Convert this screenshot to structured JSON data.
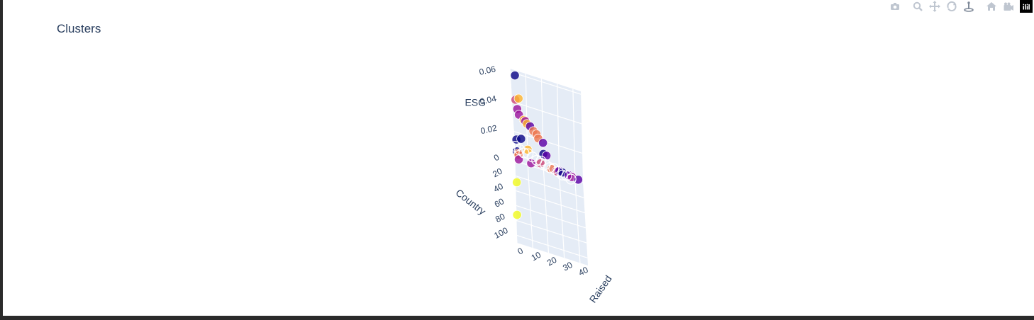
{
  "chart_data": {
    "type": "scatter3d",
    "title": "Clusters",
    "axes": {
      "x": {
        "label": "Country",
        "ticks": [
          "0",
          "20",
          "40",
          "60",
          "80",
          "100"
        ],
        "range": [
          0,
          110
        ]
      },
      "y": {
        "label": "Raised",
        "ticks": [
          "0",
          "10",
          "20",
          "30",
          "40"
        ],
        "range": [
          0,
          45
        ]
      },
      "z": {
        "label": "ESG",
        "ticks": [
          "0.02",
          "0.04",
          "0.06"
        ],
        "range": [
          0,
          0.062
        ]
      }
    },
    "grid": true,
    "colorscale": [
      "#0d0887",
      "#5c01a6",
      "#9c179e",
      "#cc4778",
      "#ed7953",
      "#fdb42f",
      "#f0f921"
    ],
    "points": [
      {
        "x": 5,
        "y": 3,
        "z": 0.061,
        "c": 0
      },
      {
        "x": 5,
        "y": 5,
        "z": 0.046,
        "c": 5
      },
      {
        "x": 4,
        "y": 3,
        "z": 0.044,
        "c": 3
      },
      {
        "x": 4,
        "y": 4,
        "z": 0.038,
        "c": 2
      },
      {
        "x": 3,
        "y": 5,
        "z": 0.034,
        "c": 2
      },
      {
        "x": 4,
        "y": 8,
        "z": 0.032,
        "c": 5
      },
      {
        "x": 3,
        "y": 9,
        "z": 0.031,
        "c": 2
      },
      {
        "x": 4,
        "y": 10,
        "z": 0.03,
        "c": 5
      },
      {
        "x": 2,
        "y": 12,
        "z": 0.028,
        "c": 1
      },
      {
        "x": 3,
        "y": 14,
        "z": 0.026,
        "c": 4
      },
      {
        "x": 2,
        "y": 16,
        "z": 0.024,
        "c": 4
      },
      {
        "x": 3,
        "y": 17,
        "z": 0.022,
        "c": 4
      },
      {
        "x": 3,
        "y": 20,
        "z": 0.02,
        "c": 1
      },
      {
        "x": 20,
        "y": 4,
        "z": 0.012,
        "c": 2
      },
      {
        "x": 10,
        "y": 3,
        "z": 0.012,
        "c": 0
      },
      {
        "x": 8,
        "y": 4,
        "z": 0.01,
        "c": 4
      },
      {
        "x": 40,
        "y": 2,
        "z": 0.006,
        "c": 6
      },
      {
        "x": 80,
        "y": 1,
        "z": 0.004,
        "c": 6
      },
      {
        "x": 6,
        "y": 30,
        "z": 0.006,
        "c": 1
      },
      {
        "x": 5,
        "y": 32,
        "z": 0.005,
        "c": 0
      },
      {
        "x": 4,
        "y": 36,
        "z": 0.004,
        "c": 1
      },
      {
        "x": 3,
        "y": 38,
        "z": 0.003,
        "c": 2
      },
      {
        "x": 2,
        "y": 42,
        "z": 0.002,
        "c": 1
      },
      {
        "x": 6,
        "y": 20,
        "z": 0.014,
        "c": 0
      },
      {
        "x": 5,
        "y": 22,
        "z": 0.013,
        "c": 1
      },
      {
        "x": 7,
        "y": 6,
        "z": 0.02,
        "c": 0
      },
      {
        "x": 6,
        "y": 3,
        "z": 0.018,
        "c": 0
      },
      {
        "x": 9,
        "y": 10,
        "z": 0.015,
        "c": 5
      },
      {
        "x": 12,
        "y": 4,
        "z": 0.011,
        "c": 4
      },
      {
        "x": 8,
        "y": 18,
        "z": 0.008,
        "c": 3
      },
      {
        "x": 7,
        "y": 25,
        "z": 0.006,
        "c": 4
      },
      {
        "x": 6,
        "y": 28,
        "z": 0.005,
        "c": 3
      },
      {
        "x": 10,
        "y": 12,
        "z": 0.007,
        "c": 2
      }
    ]
  }
}
